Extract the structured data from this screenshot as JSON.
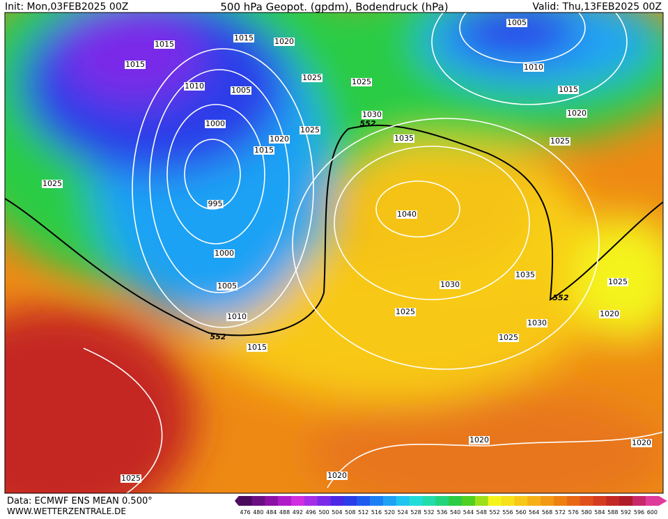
{
  "header": {
    "init": "Init: Mon,03FEB2025 00Z",
    "title": "500 hPa Geopot. (gpdm), Bodendruck (hPa)",
    "valid": "Valid: Thu,13FEB2025 00Z"
  },
  "isobar_labels": [
    "1015",
    "1015",
    "1020",
    "1015",
    "1010",
    "1005",
    "1025",
    "1025",
    "1030",
    "1000",
    "1025",
    "1020",
    "1015",
    "1035",
    "1025",
    "995",
    "1040",
    "1000",
    "1005",
    "1030",
    "1035",
    "1010",
    "1025",
    "1030",
    "1015",
    "1025",
    "1005",
    "1010",
    "1015",
    "1020",
    "1025",
    "1025",
    "1020",
    "1020",
    "1020",
    "1020",
    "1025"
  ],
  "geopotential_labels": [
    552,
    552,
    552
  ],
  "colorbar": {
    "ticks": [
      476,
      480,
      484,
      488,
      492,
      496,
      500,
      504,
      508,
      512,
      516,
      520,
      524,
      528,
      532,
      536,
      540,
      544,
      548,
      552,
      556,
      560,
      564,
      568,
      572,
      576,
      580,
      584,
      588,
      592,
      596,
      600
    ],
    "colors": [
      "#4a0a5e",
      "#6a0f82",
      "#8c12a6",
      "#b01cc8",
      "#d02ee0",
      "#a62ee6",
      "#7a2ae8",
      "#4a28e6",
      "#2a3ee8",
      "#1e5cf0",
      "#1c80f4",
      "#1ea2f4",
      "#20c4f0",
      "#22dcd8",
      "#22dcaa",
      "#22d47a",
      "#2ccc44",
      "#50d020",
      "#9ce01c",
      "#f4f41c",
      "#f8e01a",
      "#f8c818",
      "#f6b016",
      "#f29814",
      "#ee8012",
      "#e86816",
      "#e0501c",
      "#d43c20",
      "#c42824",
      "#b01c28",
      "#c8286a",
      "#e03a9a"
    ]
  },
  "footer": {
    "source": "Data: ECMWF ENS MEAN 0.500°",
    "site": "WWW.WETTERZENTRALE.DE"
  }
}
